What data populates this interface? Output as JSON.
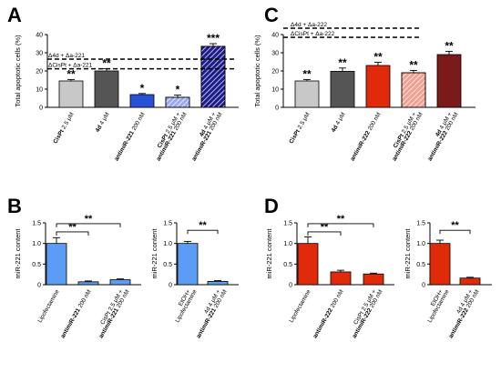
{
  "panels": [
    {
      "letter": "A",
      "type": "bar",
      "ylabel": "Total apoptotic cells (%)",
      "ylim": [
        0,
        40
      ],
      "yticks": [
        "0",
        "10",
        "20",
        "30",
        "40"
      ],
      "categories": [
        {
          "bold": "CisPt",
          "rest": " 2.5 μM"
        },
        {
          "bold": "4d",
          "rest": " 4 μM"
        },
        {
          "bold": "antimiR-221",
          "rest": " 200 nM"
        },
        {
          "bold": "CisPt",
          "rest": " 2.5 μM +",
          "line2bold": "antimiR-221",
          "line2rest": " 200 nM"
        },
        {
          "bold": "4d",
          "rest": " 4 μM +",
          "line2bold": "antimiR-221",
          "line2rest": " 200 nM"
        }
      ],
      "values": [
        14.5,
        20,
        7,
        5.5,
        33.5
      ],
      "errors": [
        0.8,
        1.2,
        0.6,
        1.2,
        1.5
      ],
      "significance": [
        "**",
        "**",
        "*",
        "*",
        "***"
      ],
      "colors": [
        "#c8c8c8",
        "#555555",
        "#2b50d8",
        "#9aa8f0",
        "#1c1c8c"
      ],
      "hatch": [
        false,
        false,
        false,
        true,
        true
      ],
      "ref_lines": [
        {
          "label": "Δ4d + Δa-221",
          "value": 26.5
        },
        {
          "label": "ΔCisPt + Δa-221",
          "value": 21.2
        }
      ]
    },
    {
      "letter": "C",
      "type": "bar",
      "ylabel": "Total apoptotic cells (%)",
      "ylim": [
        0,
        40
      ],
      "yticks": [
        "0",
        "10",
        "20",
        "30",
        "40"
      ],
      "categories": [
        {
          "bold": "CisPt",
          "rest": " 2.5 μM"
        },
        {
          "bold": "4d",
          "rest": " 4 μM"
        },
        {
          "bold": "antimiR-222",
          "rest": " 200 nM"
        },
        {
          "bold": "CisPt",
          "rest": " 2.5 μM +",
          "line2bold": "antimiR-222",
          "line2rest": " 200 nM"
        },
        {
          "bold": "4d",
          "rest": " 4 μM +",
          "line2bold": "antimiR-222",
          "line2rest": " 200 nM"
        }
      ],
      "values": [
        14.5,
        19.8,
        23,
        19,
        29
      ],
      "errors": [
        0.8,
        1.8,
        1.8,
        1.3,
        1.8
      ],
      "significance": [
        "**",
        "**",
        "**",
        "**",
        "**"
      ],
      "colors": [
        "#c8c8c8",
        "#555555",
        "#e02a0a",
        "#f0a090",
        "#7a1a1a"
      ],
      "hatch": [
        false,
        false,
        false,
        true,
        false
      ],
      "ref_lines": [
        {
          "label": "Δ4d + Δa-222",
          "value": 43.5
        },
        {
          "label": "ΔCisPt + Δa-222",
          "value": 38.5
        }
      ]
    },
    {
      "letter": "B",
      "type": "bar",
      "ylabel": "miR-221 content",
      "ylim": [
        0,
        1.5
      ],
      "yticks": [
        "0",
        "0.5",
        "1.0",
        "1.5"
      ],
      "categories": [
        {
          "bold": "",
          "rest": "Lipofectamine"
        },
        {
          "bold": "antimiR-221",
          "rest": " 200 nM"
        },
        {
          "bold": "",
          "rest": "CisPt 2.5 μM +",
          "line2bold": "antimiR-221",
          "line2rest": " 200 nM"
        }
      ],
      "values": [
        1.0,
        0.07,
        0.12
      ],
      "errors": [
        0.14,
        0.02,
        0.02
      ],
      "colors": [
        "#5b9cf5",
        "#5b9cf5",
        "#5b9cf5"
      ],
      "brackets": [
        {
          "from": 0,
          "to": 2,
          "label": "**",
          "level": 1.48
        },
        {
          "from": 0,
          "to": 1,
          "label": "**",
          "level": 1.28
        }
      ]
    },
    {
      "letter": "",
      "type": "bar",
      "ylabel": "miR-221 content",
      "ylim": [
        0,
        1.5
      ],
      "yticks": [
        "0",
        "0.5",
        "1.0",
        "1.5"
      ],
      "categories": [
        {
          "bold": "",
          "rest": "EtOH+",
          "line2bold": "",
          "line2rest": "Lipofectamine"
        },
        {
          "bold": "",
          "rest": "4d 4 μM +",
          "line2bold": "antimiR-221",
          "line2rest": " 200 nM"
        }
      ],
      "values": [
        1.0,
        0.08
      ],
      "errors": [
        0.05,
        0.02
      ],
      "colors": [
        "#5b9cf5",
        "#5b9cf5"
      ],
      "brackets": [
        {
          "from": 0,
          "to": 1,
          "label": "**",
          "level": 1.32
        }
      ]
    },
    {
      "letter": "D",
      "type": "bar",
      "ylabel": "miR-221 content",
      "ylim": [
        0,
        1.5
      ],
      "yticks": [
        "0",
        "0.5",
        "1.0",
        "1.5"
      ],
      "categories": [
        {
          "bold": "",
          "rest": "Lipofectamine"
        },
        {
          "bold": "antimiR-222",
          "rest": " 200 nM"
        },
        {
          "bold": "",
          "rest": "CisPt 2.5 μM +",
          "line2bold": "antimiR-222",
          "line2rest": " 200 nM"
        }
      ],
      "values": [
        1.0,
        0.31,
        0.26
      ],
      "errors": [
        0.16,
        0.04,
        0.02
      ],
      "colors": [
        "#e02a0a",
        "#e02a0a",
        "#e02a0a"
      ],
      "brackets": [
        {
          "from": 0,
          "to": 2,
          "label": "**",
          "level": 1.48
        },
        {
          "from": 0,
          "to": 1,
          "label": "**",
          "level": 1.28
        }
      ]
    },
    {
      "letter": "",
      "type": "bar",
      "ylabel": "miR-221 content",
      "ylim": [
        0,
        1.5
      ],
      "yticks": [
        "0",
        "0.5",
        "1.0",
        "1.5"
      ],
      "categories": [
        {
          "bold": "",
          "rest": "EtOH+",
          "line2bold": "",
          "line2rest": "Lipofectamine"
        },
        {
          "bold": "",
          "rest": "4d 4 μM +",
          "line2bold": "antimiR-222",
          "line2rest": " 200 nM"
        }
      ],
      "values": [
        1.0,
        0.16
      ],
      "errors": [
        0.08,
        0.02
      ],
      "colors": [
        "#e02a0a",
        "#e02a0a"
      ],
      "brackets": [
        {
          "from": 0,
          "to": 1,
          "label": "**",
          "level": 1.32
        }
      ]
    }
  ],
  "chart_data": [
    {
      "type": "bar",
      "panel": "A",
      "ylabel": "Total apoptotic cells (%)",
      "ylim": [
        0,
        40
      ],
      "categories": [
        "CisPt 2.5 μM",
        "4d 4 μM",
        "antimiR-221 200 nM",
        "CisPt 2.5 μM + antimiR-221 200 nM",
        "4d 4 μM + antimiR-221 200 nM"
      ],
      "values": [
        14.5,
        20,
        7,
        5.5,
        33.5
      ]
    },
    {
      "type": "bar",
      "panel": "C",
      "ylabel": "Total apoptotic cells (%)",
      "ylim": [
        0,
        40
      ],
      "categories": [
        "CisPt 2.5 μM",
        "4d 4 μM",
        "antimiR-222 200 nM",
        "CisPt 2.5 μM + antimiR-222 200 nM",
        "4d 4 μM + antimiR-222 200 nM"
      ],
      "values": [
        14.5,
        19.8,
        23,
        19,
        29
      ]
    },
    {
      "type": "bar",
      "panel": "B",
      "ylabel": "miR-221 content",
      "ylim": [
        0,
        1.5
      ],
      "categories": [
        "Lipofectamine",
        "antimiR-221 200 nM",
        "CisPt 2.5 μM + antimiR-221 200 nM"
      ],
      "values": [
        1.0,
        0.07,
        0.12
      ]
    },
    {
      "type": "bar",
      "panel": "B-right",
      "ylabel": "miR-221 content",
      "ylim": [
        0,
        1.5
      ],
      "categories": [
        "EtOH+ Lipofectamine",
        "4d 4 μM + antimiR-221 200 nM"
      ],
      "values": [
        1.0,
        0.08
      ]
    },
    {
      "type": "bar",
      "panel": "D",
      "ylabel": "miR-221 content",
      "ylim": [
        0,
        1.5
      ],
      "categories": [
        "Lipofectamine",
        "antimiR-222 200 nM",
        "CisPt 2.5 μM + antimiR-222 200 nM"
      ],
      "values": [
        1.0,
        0.31,
        0.26
      ]
    },
    {
      "type": "bar",
      "panel": "D-right",
      "ylabel": "miR-221 content",
      "ylim": [
        0,
        1.5
      ],
      "categories": [
        "EtOH+ Lipofectamine",
        "4d 4 μM + antimiR-222 200 nM"
      ],
      "values": [
        1.0,
        0.16
      ]
    }
  ]
}
